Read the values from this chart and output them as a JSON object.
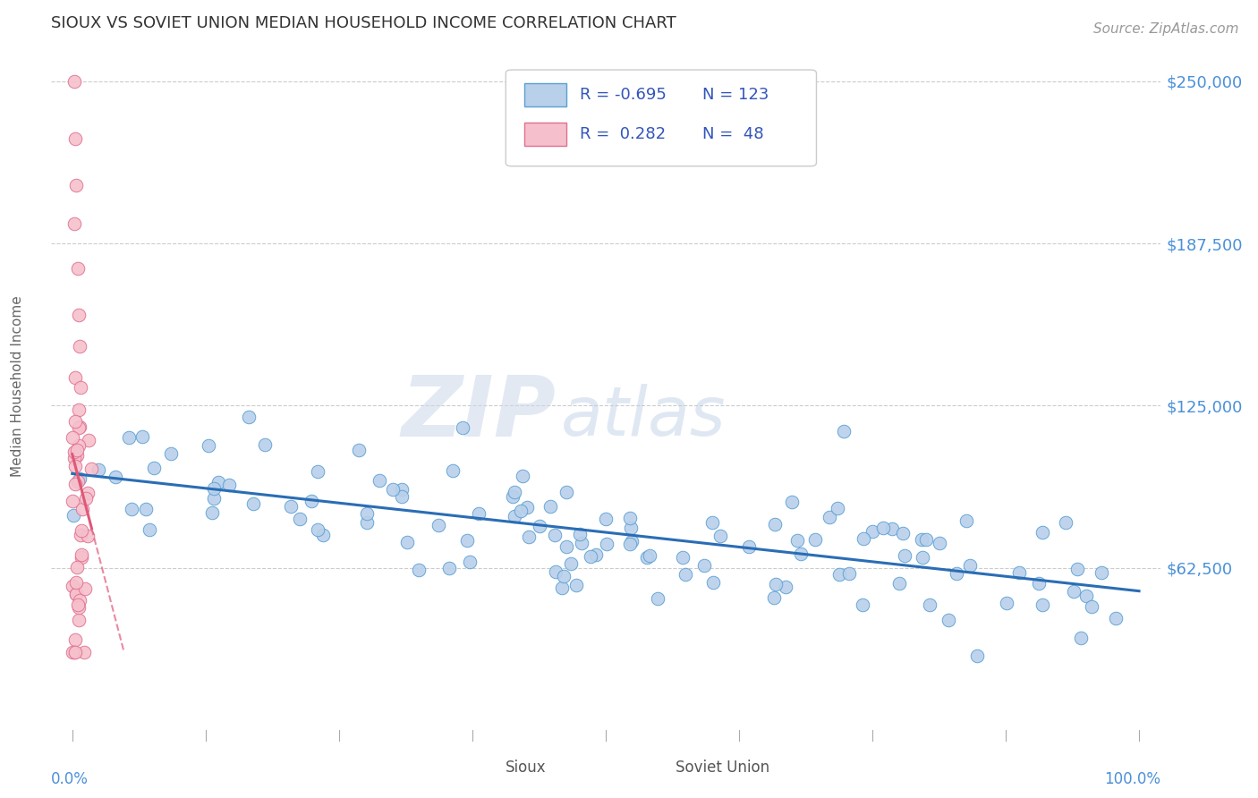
{
  "title": "SIOUX VS SOVIET UNION MEDIAN HOUSEHOLD INCOME CORRELATION CHART",
  "source": "Source: ZipAtlas.com",
  "ylabel": "Median Household Income",
  "ytick_vals": [
    62500,
    125000,
    187500,
    250000
  ],
  "ylim": [
    0,
    265000
  ],
  "xlim": [
    -0.02,
    1.02
  ],
  "series1_name": "Sioux",
  "series1_color": "#b8d0ea",
  "series1_edge_color": "#5a9fd4",
  "series1_line_color": "#2a6db5",
  "series1_R": -0.695,
  "series1_N": 123,
  "series2_name": "Soviet Union",
  "series2_color": "#f5c0cc",
  "series2_edge_color": "#e07090",
  "series2_line_color": "#e05878",
  "series2_R": 0.282,
  "series2_N": 48,
  "legend_color": "#3355bb",
  "background_color": "#ffffff",
  "grid_color": "#cccccc",
  "title_color": "#333333",
  "axis_label_color": "#4a90d9",
  "watermark_zip_color": "#c8d8ec",
  "watermark_atlas_color": "#c8d8ec",
  "title_fontsize": 13,
  "source_fontsize": 11
}
